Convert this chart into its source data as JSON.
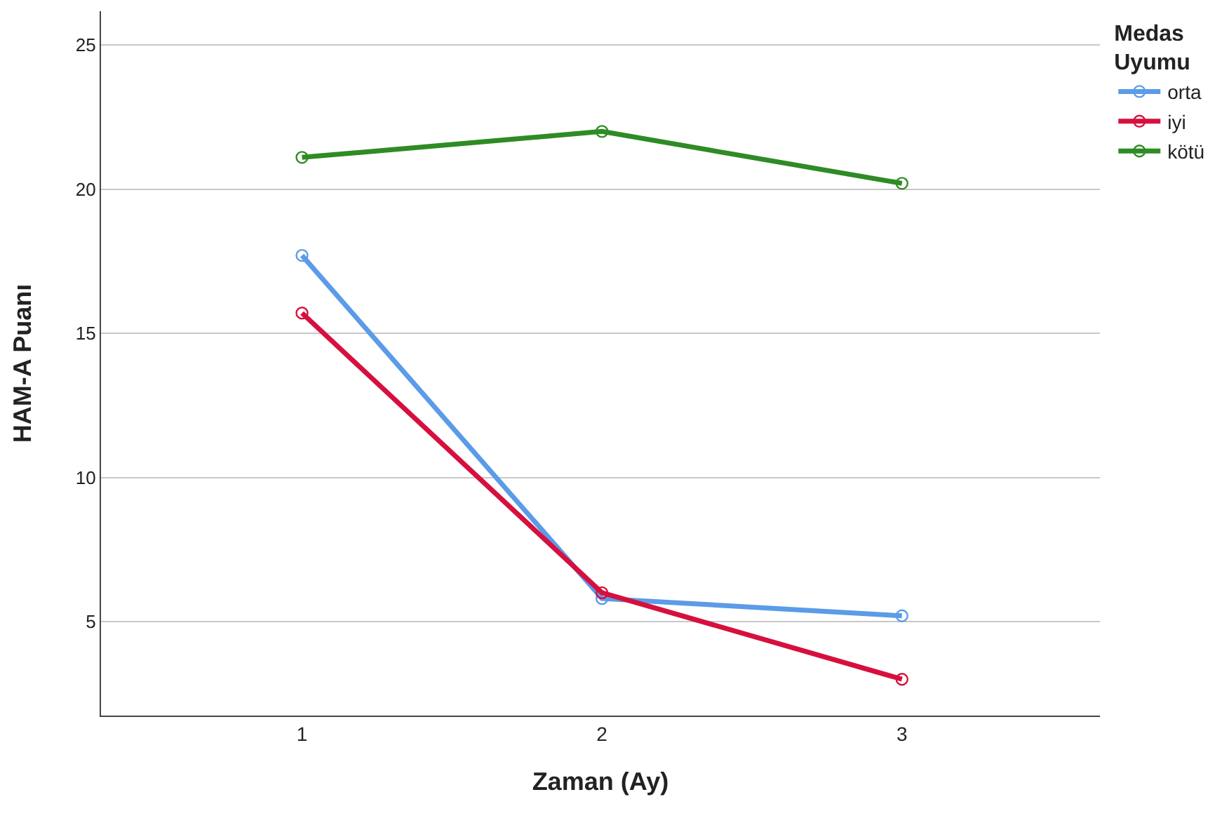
{
  "chart_data": {
    "type": "line",
    "xlabel": "Zaman (Ay)",
    "ylabel": "HAM-A Puanı",
    "legend_title": "Medas Uyumu",
    "x": [
      1,
      2,
      3
    ],
    "xlim": [
      0.33,
      3.66
    ],
    "xticks": [
      1,
      2,
      3
    ],
    "ylim": [
      1.74,
      26.17
    ],
    "yticks": [
      5,
      10,
      15,
      20,
      25
    ],
    "series": [
      {
        "name": "orta",
        "color": "#5b9be8",
        "values": [
          17.7,
          5.8,
          5.2
        ]
      },
      {
        "name": "iyi",
        "color": "#d6103e",
        "values": [
          15.7,
          6.0,
          3.0
        ]
      },
      {
        "name": "kötü",
        "color": "#2e8b25",
        "values": [
          21.1,
          22.0,
          20.2
        ]
      }
    ],
    "grid": "y",
    "legend": "top right",
    "marker": "circle",
    "line_style": "solid"
  }
}
